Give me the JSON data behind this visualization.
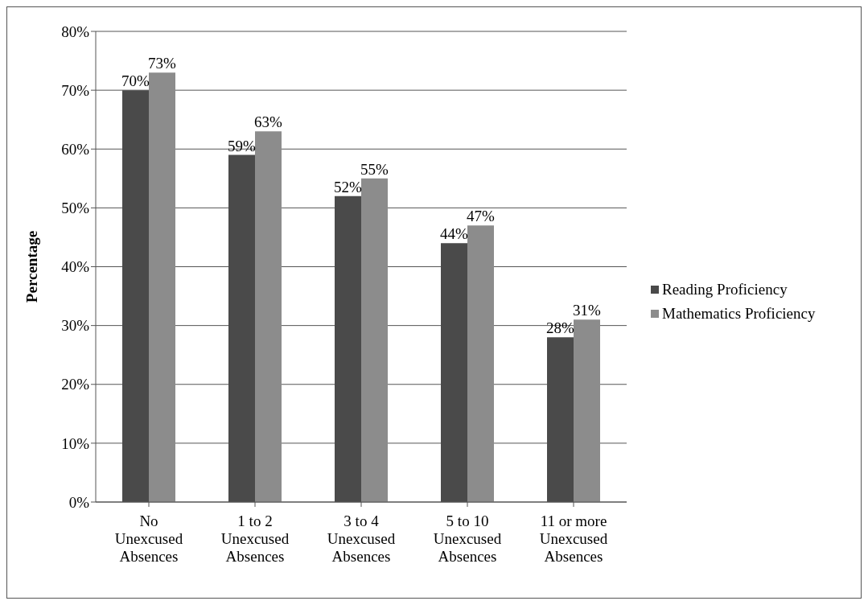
{
  "chart_data": {
    "type": "bar",
    "ylabel": "Percentage",
    "categories": [
      "No Unexcused Absences",
      "1 to 2 Unexcused Absences",
      "3 to 4 Unexcused Absences",
      "5 to 10 Unexcused Absences",
      "11 or more Unexcused Absences"
    ],
    "series": [
      {
        "name": "Reading Proficiency",
        "color": "#4a4a4a",
        "values": [
          70,
          59,
          52,
          44,
          28
        ],
        "value_labels": [
          "70%",
          "59%",
          "52%",
          "44%",
          "28%"
        ]
      },
      {
        "name": "Mathematics Proficiency",
        "color": "#8c8c8c",
        "values": [
          73,
          63,
          55,
          47,
          31
        ],
        "value_labels": [
          "73%",
          "63%",
          "55%",
          "47%",
          "31%"
        ]
      }
    ],
    "ylim": [
      0,
      80
    ],
    "yticks": [
      {
        "value": 0,
        "label": "0%"
      },
      {
        "value": 10,
        "label": "10%"
      },
      {
        "value": 20,
        "label": "20%"
      },
      {
        "value": 30,
        "label": "30%"
      },
      {
        "value": 40,
        "label": "40%"
      },
      {
        "value": 50,
        "label": "50%"
      },
      {
        "value": 60,
        "label": "60%"
      },
      {
        "value": 70,
        "label": "70%"
      },
      {
        "value": 80,
        "label": "80%"
      }
    ],
    "grid": "y",
    "legend": "right"
  }
}
